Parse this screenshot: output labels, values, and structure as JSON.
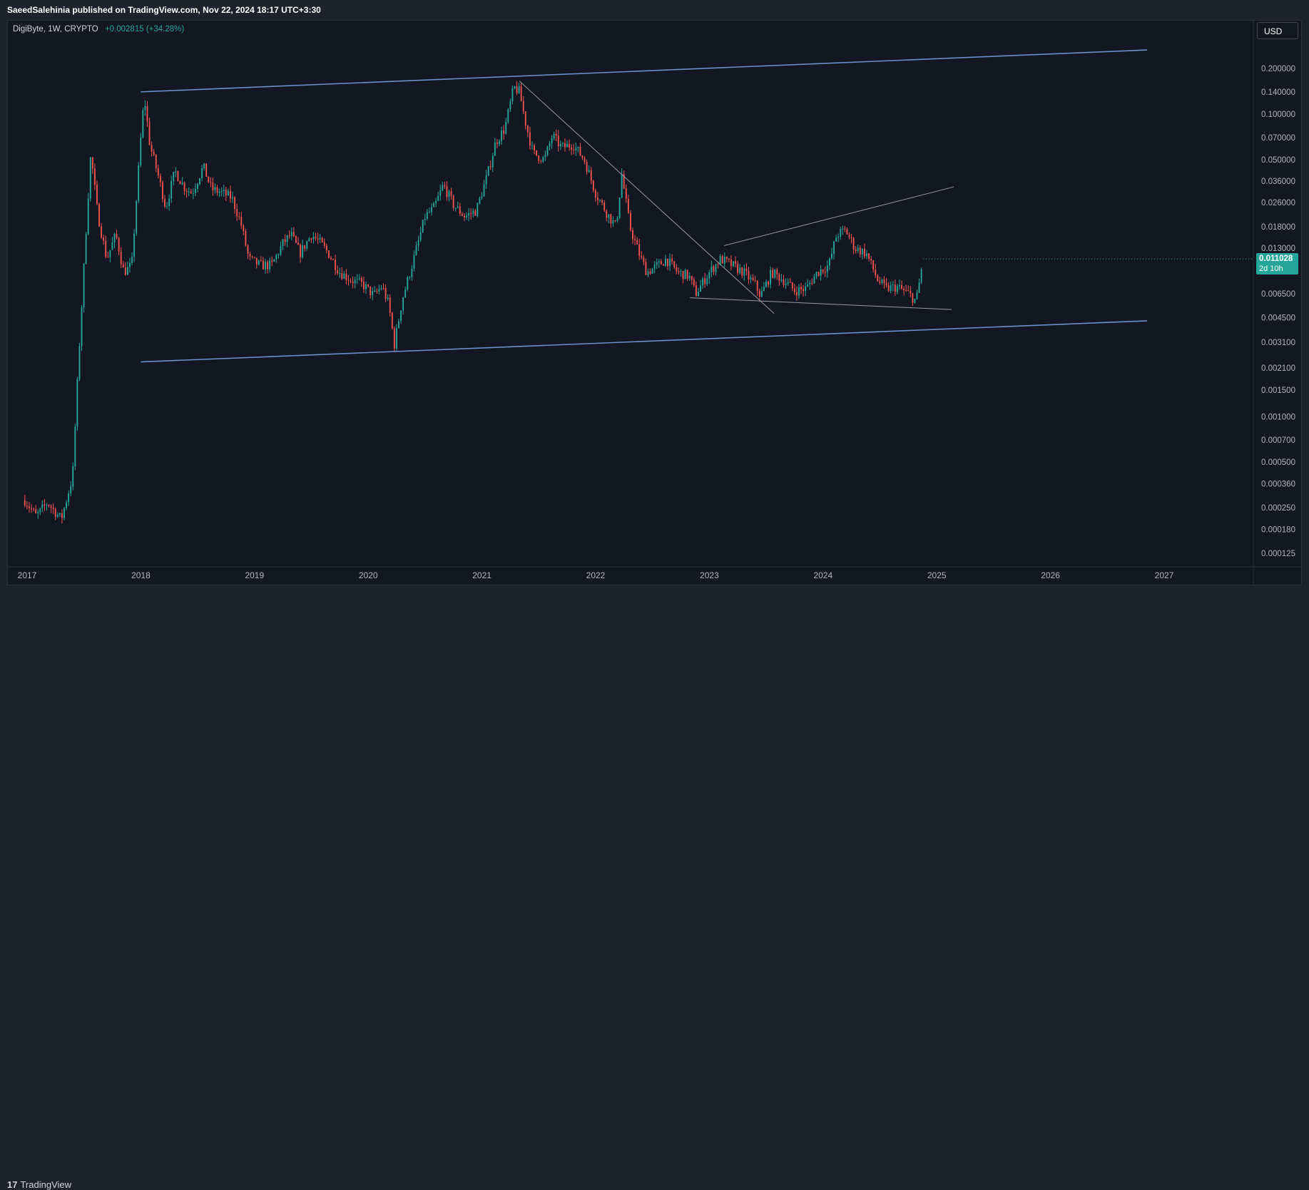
{
  "header": {
    "publisher_text": "SaeedSalehinia published on TradingView.com, Nov 22, 2024 18:17 UTC+3:30"
  },
  "symbol": {
    "name": "DigiByte, 1W, CRYPTO",
    "change": "+0.002815 (+34.28%)"
  },
  "currency": "USD",
  "footer": {
    "logo_mark": "17",
    "logo_text": "TradingView"
  },
  "colors": {
    "up": "#26a69a",
    "down": "#ef5350",
    "channel": "#6b8fc7",
    "trendline": "#9598a1",
    "background": "#131722"
  },
  "last_price": {
    "value": "0.011028",
    "countdown": "2d 10h"
  },
  "chart_data": {
    "type": "candlestick",
    "scale": "log",
    "ylim": [
      0.0001,
      0.32
    ],
    "xlim": [
      2016.98,
      2027.98
    ],
    "y_ticks": [
      "0.200000",
      "0.140000",
      "0.100000",
      "0.070000",
      "0.050000",
      "0.036000",
      "0.026000",
      "0.018000",
      "0.013000",
      "0.006500",
      "0.004500",
      "0.003100",
      "0.002100",
      "0.001500",
      "0.001000",
      "0.000700",
      "0.000500",
      "0.000360",
      "0.000250",
      "0.000180",
      "0.000125"
    ],
    "x_ticks": [
      "2017",
      "2018",
      "2019",
      "2020",
      "2021",
      "2022",
      "2023",
      "2024",
      "2025",
      "2026",
      "2027"
    ],
    "price_path": [
      [
        2016.98,
        0.00028
      ],
      [
        2017.08,
        0.00022
      ],
      [
        2017.18,
        0.00027
      ],
      [
        2017.3,
        0.00021
      ],
      [
        2017.4,
        0.0004
      ],
      [
        2017.45,
        0.0022
      ],
      [
        2017.52,
        0.018
      ],
      [
        2017.56,
        0.055
      ],
      [
        2017.62,
        0.022
      ],
      [
        2017.7,
        0.011
      ],
      [
        2017.78,
        0.016
      ],
      [
        2017.85,
        0.009
      ],
      [
        2017.92,
        0.01
      ],
      [
        2018.0,
        0.07
      ],
      [
        2018.03,
        0.13
      ],
      [
        2018.08,
        0.062
      ],
      [
        2018.15,
        0.04
      ],
      [
        2018.22,
        0.024
      ],
      [
        2018.3,
        0.042
      ],
      [
        2018.38,
        0.033
      ],
      [
        2018.45,
        0.03
      ],
      [
        2018.55,
        0.045
      ],
      [
        2018.62,
        0.032
      ],
      [
        2018.72,
        0.03
      ],
      [
        2018.8,
        0.028
      ],
      [
        2018.88,
        0.019
      ],
      [
        2018.95,
        0.011
      ],
      [
        2019.05,
        0.01
      ],
      [
        2019.15,
        0.01
      ],
      [
        2019.25,
        0.014
      ],
      [
        2019.32,
        0.016
      ],
      [
        2019.4,
        0.012
      ],
      [
        2019.5,
        0.016
      ],
      [
        2019.58,
        0.014
      ],
      [
        2019.65,
        0.012
      ],
      [
        2019.75,
        0.009
      ],
      [
        2019.85,
        0.008
      ],
      [
        2019.95,
        0.0075
      ],
      [
        2020.05,
        0.0063
      ],
      [
        2020.12,
        0.0073
      ],
      [
        2020.18,
        0.0055
      ],
      [
        2020.23,
        0.003
      ],
      [
        2020.3,
        0.006
      ],
      [
        2020.4,
        0.011
      ],
      [
        2020.5,
        0.021
      ],
      [
        2020.58,
        0.024
      ],
      [
        2020.66,
        0.034
      ],
      [
        2020.75,
        0.025
      ],
      [
        2020.85,
        0.021
      ],
      [
        2020.95,
        0.023
      ],
      [
        2021.05,
        0.04
      ],
      [
        2021.12,
        0.065
      ],
      [
        2021.2,
        0.08
      ],
      [
        2021.28,
        0.15
      ],
      [
        2021.33,
        0.14
      ],
      [
        2021.38,
        0.09
      ],
      [
        2021.45,
        0.055
      ],
      [
        2021.55,
        0.05
      ],
      [
        2021.62,
        0.072
      ],
      [
        2021.7,
        0.06
      ],
      [
        2021.8,
        0.063
      ],
      [
        2021.9,
        0.05
      ],
      [
        2022.0,
        0.03
      ],
      [
        2022.1,
        0.022
      ],
      [
        2022.18,
        0.018
      ],
      [
        2022.23,
        0.04
      ],
      [
        2022.3,
        0.018
      ],
      [
        2022.38,
        0.012
      ],
      [
        2022.45,
        0.009
      ],
      [
        2022.55,
        0.01
      ],
      [
        2022.62,
        0.011
      ],
      [
        2022.72,
        0.009
      ],
      [
        2022.82,
        0.0085
      ],
      [
        2022.88,
        0.0065
      ],
      [
        2023.0,
        0.009
      ],
      [
        2023.1,
        0.011
      ],
      [
        2023.2,
        0.01
      ],
      [
        2023.3,
        0.009
      ],
      [
        2023.4,
        0.0075
      ],
      [
        2023.45,
        0.0063
      ],
      [
        2023.55,
        0.009
      ],
      [
        2023.65,
        0.008
      ],
      [
        2023.75,
        0.0068
      ],
      [
        2023.85,
        0.007
      ],
      [
        2023.95,
        0.009
      ],
      [
        2024.05,
        0.01
      ],
      [
        2024.12,
        0.016
      ],
      [
        2024.2,
        0.017
      ],
      [
        2024.28,
        0.013
      ],
      [
        2024.38,
        0.012
      ],
      [
        2024.48,
        0.008
      ],
      [
        2024.55,
        0.007
      ],
      [
        2024.65,
        0.0072
      ],
      [
        2024.75,
        0.0065
      ],
      [
        2024.82,
        0.0058
      ],
      [
        2024.88,
        0.011
      ]
    ],
    "channel_upper": [
      [
        2018.0,
        0.14
      ],
      [
        2026.85,
        0.265
      ]
    ],
    "channel_lower": [
      [
        2018.0,
        0.0023
      ],
      [
        2026.85,
        0.0043
      ]
    ],
    "trendline_down": [
      [
        2021.33,
        0.165
      ],
      [
        2023.57,
        0.0048
      ]
    ],
    "wedge_upper": [
      [
        2023.13,
        0.0135
      ],
      [
        2025.15,
        0.033
      ]
    ],
    "wedge_lower": [
      [
        2022.83,
        0.0061
      ],
      [
        2025.13,
        0.0051
      ]
    ]
  }
}
